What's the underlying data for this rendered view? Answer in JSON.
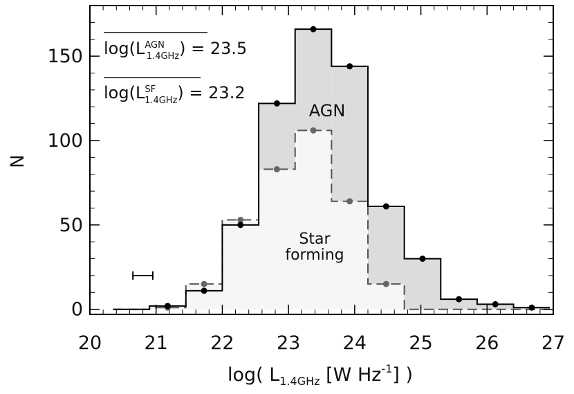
{
  "chart_data": {
    "type": "bar",
    "x_edges": [
      20.35,
      20.9,
      21.45,
      22.0,
      22.55,
      23.1,
      23.65,
      24.2,
      24.75,
      25.3,
      25.85,
      26.4,
      26.95
    ],
    "bin_centers": [
      20.625,
      21.175,
      21.725,
      22.275,
      22.825,
      23.375,
      23.925,
      24.475,
      25.025,
      25.575,
      26.125,
      26.675
    ],
    "series": [
      {
        "name": "AGN",
        "values": [
          0,
          2,
          11,
          50,
          122,
          166,
          144,
          61,
          30,
          6,
          3,
          1
        ]
      },
      {
        "name": "Star forming",
        "values": [
          0,
          1,
          15,
          53,
          83,
          106,
          64,
          15,
          0,
          0,
          0,
          0
        ]
      }
    ],
    "xlim": [
      20,
      27
    ],
    "ylim": [
      -3,
      180
    ],
    "x_ticks": [
      "20",
      "21",
      "22",
      "23",
      "24",
      "25",
      "26",
      "27"
    ],
    "y_ticks": [
      "0",
      "50",
      "100",
      "150"
    ],
    "xlabel": {
      "prefix": "log( L",
      "sub": "1.4GHz",
      "mid": " [W Hz",
      "sup": "-1",
      "suffix": "] )"
    },
    "ylabel": "N",
    "annotations": {
      "agn_mean": {
        "pre": "log(L",
        "sup": "AGN",
        "sub": "1.4GHz",
        "post": ") = 23.5"
      },
      "sf_mean": {
        "pre": "log(L",
        "sup": "SF",
        "sub": "1.4GHz",
        "post": ") = 23.2"
      },
      "agn_label": "AGN",
      "sf_label_line1": "Star",
      "sf_label_line2": "forming"
    },
    "error_bar": {
      "x": 20.8,
      "half_width": 0.15,
      "y": 20
    },
    "colors": {
      "agn_fill": "#dcdcdc",
      "sf_fill": "#f6f6f6",
      "agn_line": "#000000",
      "sf_line": "#555555"
    }
  }
}
